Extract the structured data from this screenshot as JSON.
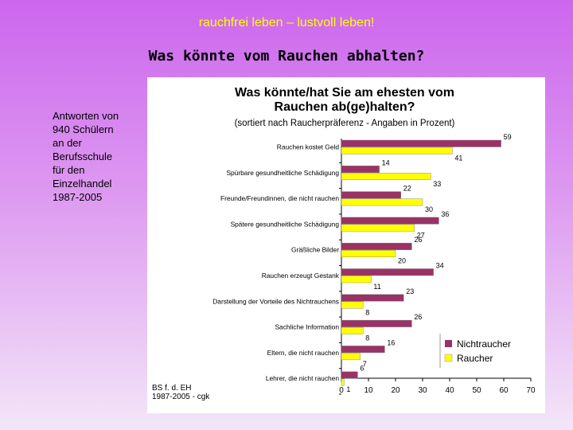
{
  "slide": {
    "title": "rauchfrei leben – lustvoll leben!",
    "subtitle": "Was könnte vom Rauchen abhalten?",
    "side_note": "Antworten von\n940 Schülern\nan der\nBerufsschule\nfür den\nEinzelhandel\n1987-2005"
  },
  "chart_data": {
    "type": "bar",
    "orientation": "horizontal",
    "title_line1": "Was könnte/hat Sie am ehesten vom",
    "title_line2": "Rauchen ab(ge)halten?",
    "subtitle": "(sortiert nach Raucherpräferenz - Angaben in Prozent)",
    "categories": [
      "Rauchen kostet Geld",
      "Spürbare gesundheitliche Schädigung",
      "Freunde/Freundinnen, die nicht rauchen",
      "Spätere gesundheitliche Schädigung",
      "Gräßliche Bilder",
      "Rauchen erzeugt Gestank",
      "Darstellung der Vorteile des Nichtrauchens",
      "Sachliche Information",
      "Eltern, die nicht rauchen",
      "Lehrer, die nicht rauchen"
    ],
    "series": [
      {
        "name": "Nichtraucher",
        "color": "#993366",
        "values": [
          59,
          14,
          22,
          36,
          26,
          34,
          23,
          26,
          16,
          6
        ]
      },
      {
        "name": "Raucher",
        "color": "#ffff00",
        "values": [
          41,
          33,
          30,
          27,
          20,
          11,
          8,
          8,
          7,
          1
        ]
      }
    ],
    "x_ticks": [
      0,
      10,
      20,
      30,
      40,
      50,
      60,
      70
    ],
    "xlim": [
      0,
      70
    ],
    "legend_position": "bottom-right",
    "source": [
      "BS f. d. EH",
      "1987-2005 - cgk"
    ]
  }
}
